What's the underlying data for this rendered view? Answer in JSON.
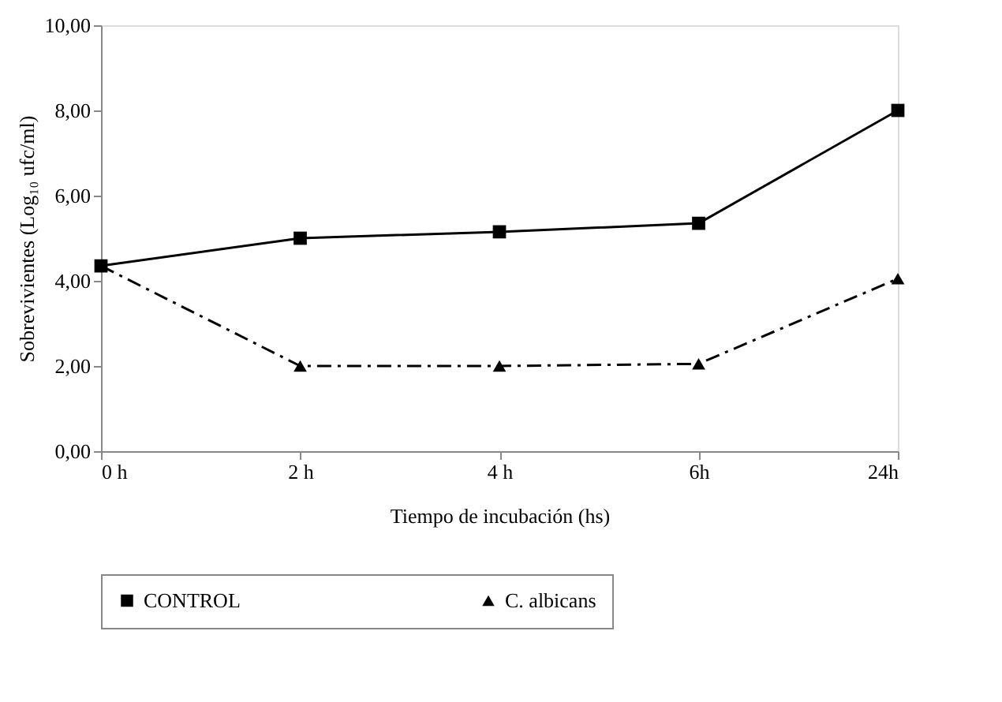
{
  "chart_data": {
    "type": "line",
    "xlabel": "Tiempo de incubación (hs)",
    "ylabel": "Sobrevivientes (Log₁₀ ufc/ml)",
    "categories": [
      "0 h",
      "2 h",
      "4 h",
      "6h",
      "24h"
    ],
    "series": [
      {
        "name": "CONTROL",
        "color": "#000000",
        "marker": "square",
        "line_style": "solid",
        "values": [
          4.35,
          5.0,
          5.15,
          5.35,
          8.0
        ]
      },
      {
        "name": "C. albicans",
        "color": "#000000",
        "marker": "triangle",
        "line_style": "dashed",
        "values": [
          4.35,
          2.0,
          2.0,
          2.05,
          4.05
        ]
      }
    ],
    "ylim": [
      0,
      10
    ],
    "yticks": [
      {
        "value": 0,
        "label": "0,00"
      },
      {
        "value": 2,
        "label": "2,00"
      },
      {
        "value": 4,
        "label": "4,00"
      },
      {
        "value": 6,
        "label": "6,00"
      },
      {
        "value": 8,
        "label": "8,00"
      },
      {
        "value": 10,
        "label": "10,00"
      }
    ],
    "grid": false,
    "legend": "bottom"
  }
}
